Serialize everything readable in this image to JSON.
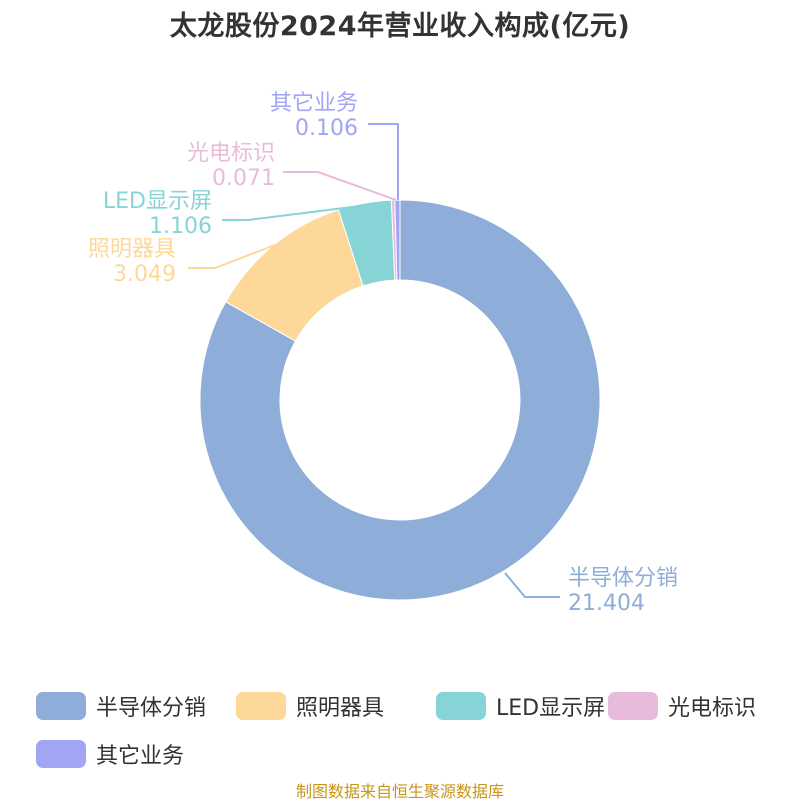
{
  "chart_data": {
    "type": "pie",
    "title": "太龙股份2024年营业收入构成(亿元)",
    "series": [
      {
        "name": "半导体分销",
        "value": 21.404,
        "value_label": "21.404",
        "color": "#8eaed9"
      },
      {
        "name": "照明器具",
        "value": 3.049,
        "value_label": "3.049",
        "color": "#fdd899"
      },
      {
        "name": "LED显示屏",
        "value": 1.106,
        "value_label": "1.106",
        "color": "#86d4d6"
      },
      {
        "name": "光电标识",
        "value": 0.071,
        "value_label": "0.071",
        "color": "#e9bbdb"
      },
      {
        "name": "其它业务",
        "value": 0.106,
        "value_label": "0.106",
        "color": "#a2a4f4"
      }
    ],
    "legend_position": "bottom"
  },
  "source_note": "制图数据来自恒生聚源数据库"
}
